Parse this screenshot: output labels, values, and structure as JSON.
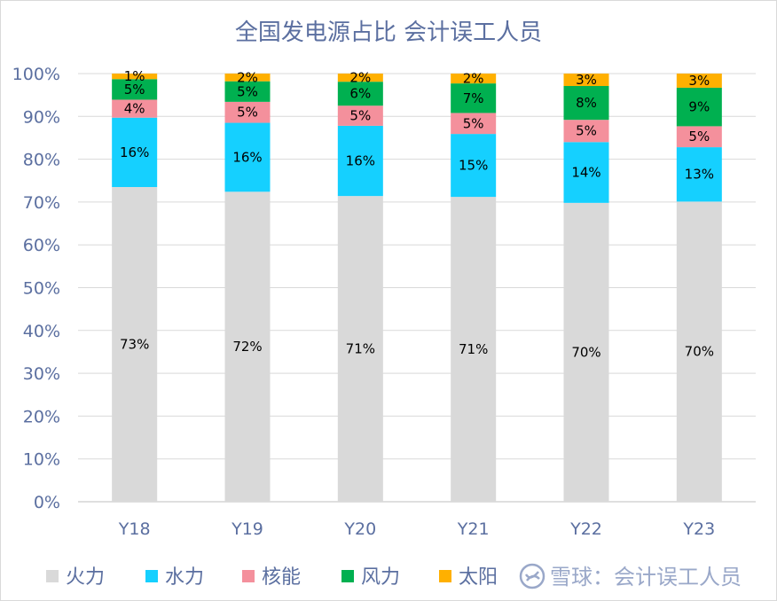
{
  "chart_data": {
    "type": "bar",
    "stacked": true,
    "title": "全国发电源占比 会计误工人员",
    "xlabel": "",
    "ylabel": "",
    "ylim": [
      0,
      100
    ],
    "y_ticks": [
      "0%",
      "10%",
      "20%",
      "30%",
      "40%",
      "50%",
      "60%",
      "70%",
      "80%",
      "90%",
      "100%"
    ],
    "grid": true,
    "legend_position": "bottom",
    "categories": [
      "Y18",
      "Y19",
      "Y20",
      "Y21",
      "Y22",
      "Y23"
    ],
    "series": [
      {
        "name": "火力",
        "color": "#d9d9d9",
        "values": [
          73.5,
          72.4,
          71.4,
          71.2,
          69.8,
          70.1
        ],
        "labels": [
          "73%",
          "72%",
          "71%",
          "71%",
          "70%",
          "70%"
        ]
      },
      {
        "name": "水力",
        "color": "#15d0ff",
        "values": [
          16.2,
          16.1,
          16.4,
          14.7,
          14.2,
          12.7
        ],
        "labels": [
          "16%",
          "16%",
          "16%",
          "15%",
          "14%",
          "13%"
        ]
      },
      {
        "name": "核能",
        "color": "#f4909c",
        "values": [
          4.2,
          4.9,
          4.7,
          4.9,
          5.2,
          4.9
        ],
        "labels": [
          "4%",
          "5%",
          "5%",
          "5%",
          "5%",
          "5%"
        ]
      },
      {
        "name": "风力",
        "color": "#00b050",
        "values": [
          4.8,
          4.8,
          5.6,
          6.9,
          7.9,
          9.0
        ],
        "labels": [
          "5%",
          "5%",
          "6%",
          "7%",
          "8%",
          "9%"
        ]
      },
      {
        "name": "太阳",
        "color": "#ffb000",
        "values": [
          1.3,
          1.8,
          1.9,
          2.3,
          2.9,
          3.3
        ],
        "labels": [
          "1%",
          "2%",
          "2%",
          "2%",
          "3%",
          "3%"
        ]
      }
    ]
  },
  "watermark": {
    "text": "雪球：会计误工人员",
    "icon": "snowball-logo-icon"
  }
}
